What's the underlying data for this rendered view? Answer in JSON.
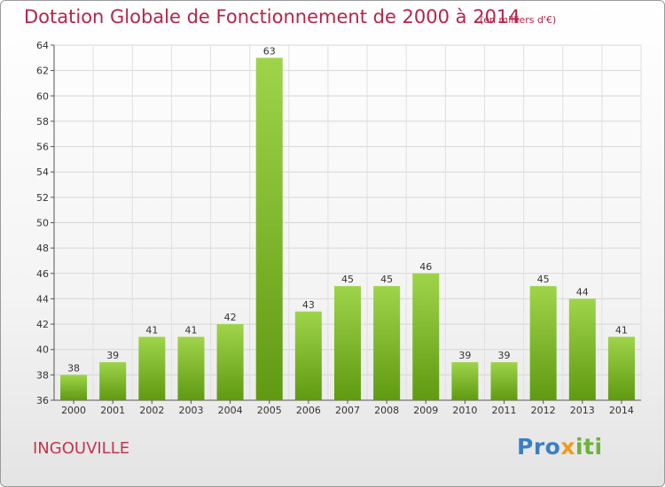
{
  "chart_data": {
    "type": "bar",
    "title": "Dotation Globale de Fonctionnement de 2000 à 2014",
    "subtitle": "(en milliers d'€)",
    "categories": [
      "2000",
      "2001",
      "2002",
      "2003",
      "2004",
      "2005",
      "2006",
      "2007",
      "2008",
      "2009",
      "2010",
      "2011",
      "2012",
      "2013",
      "2014"
    ],
    "values": [
      38,
      39,
      41,
      41,
      42,
      63,
      43,
      45,
      45,
      46,
      39,
      39,
      45,
      44,
      41
    ],
    "ylim": [
      36,
      64
    ],
    "yticks": [
      36,
      38,
      40,
      42,
      44,
      46,
      48,
      50,
      52,
      54,
      56,
      58,
      60,
      62,
      64
    ],
    "xlabel": "",
    "ylabel": "",
    "bar_color_light": "#9fd44a",
    "bar_color_dark": "#5f9a12",
    "grid": true
  },
  "footer": {
    "commune": "INGOUVILLE",
    "logo_parts": [
      "Pro",
      "x",
      "iti"
    ]
  }
}
